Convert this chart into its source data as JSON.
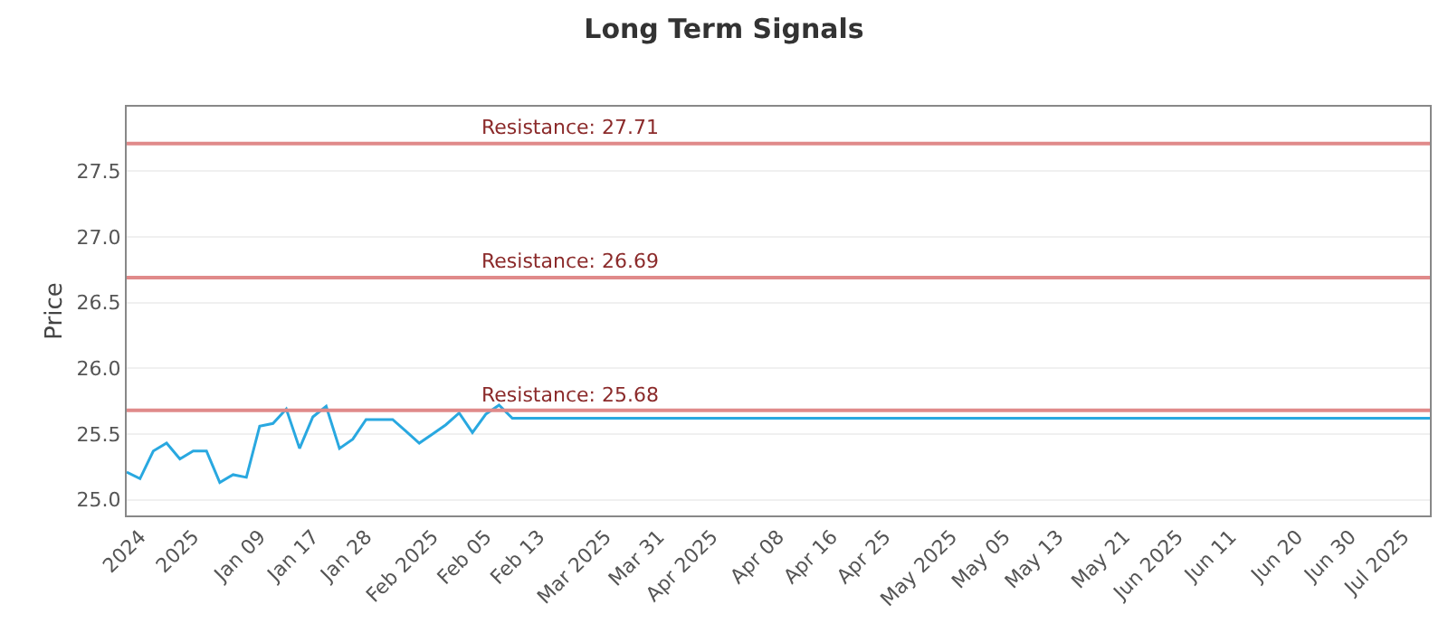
{
  "chart_data": {
    "type": "line",
    "title": "Long Term Signals",
    "ylabel": "Price",
    "categories": [
      null,
      "2024",
      null,
      null,
      null,
      "2025",
      null,
      null,
      null,
      null,
      "Jan 09",
      null,
      null,
      null,
      "Jan 17",
      null,
      null,
      null,
      "Jan 28",
      null,
      null,
      null,
      null,
      "Feb 2025",
      null,
      null,
      null,
      "Feb 05",
      null,
      null,
      null,
      "Feb 13",
      null,
      null,
      null,
      null,
      "Mar 2025",
      null,
      null,
      null,
      "Mar 31",
      null,
      null,
      null,
      "Apr 2025",
      null,
      null,
      null,
      null,
      "Apr 08",
      null,
      null,
      null,
      "Apr 16",
      null,
      null,
      null,
      "Apr 25",
      null,
      null,
      null,
      null,
      "May 2025",
      null,
      null,
      null,
      "May 05",
      null,
      null,
      null,
      "May 13",
      null,
      null,
      null,
      null,
      "May 21",
      null,
      null,
      null,
      "Jun 2025",
      null,
      null,
      null,
      "Jun 11",
      null,
      null,
      null,
      null,
      "Jun 20",
      null,
      null,
      null,
      "Jun 30",
      null,
      null,
      null,
      "Jul 2025",
      null,
      null
    ],
    "series": [
      {
        "color": "#29a8e0",
        "values": [
          25.21,
          25.16,
          25.37,
          25.43,
          25.31,
          25.37,
          25.37,
          25.13,
          25.19,
          25.17,
          25.56,
          25.58,
          25.69,
          25.39,
          25.63,
          25.71,
          25.39,
          25.46,
          25.61,
          25.61,
          25.61,
          25.52,
          25.43,
          25.5,
          25.57,
          25.66,
          25.51,
          25.65,
          25.72,
          25.62,
          25.62,
          25.62,
          25.62,
          25.62,
          25.62,
          25.62,
          25.62,
          25.62,
          25.62,
          25.62,
          25.62,
          25.62,
          25.62,
          25.62,
          25.62,
          25.62,
          25.62,
          25.62,
          25.62,
          25.62,
          25.62,
          25.62,
          25.62,
          25.62,
          25.62,
          25.62,
          25.62,
          25.62,
          25.62,
          25.62,
          25.62,
          25.62,
          25.62,
          25.62,
          25.62,
          25.62,
          25.62,
          25.62,
          25.62,
          25.62,
          25.62,
          25.62,
          25.62,
          25.62,
          25.62,
          25.62,
          25.62,
          25.62,
          25.62,
          25.62,
          25.62,
          25.62,
          25.62,
          25.62,
          25.62,
          25.62,
          25.62,
          25.62,
          25.62,
          25.62,
          25.62,
          25.62,
          25.62,
          25.62,
          25.62,
          25.62,
          25.62,
          25.62,
          25.62
        ]
      }
    ],
    "ylim": [
      24.88,
      27.99
    ],
    "yticks": [
      {
        "value": 25,
        "label": "25.0"
      },
      25.5,
      {
        "value": 26,
        "label": "26.0"
      },
      26.5,
      {
        "value": 27,
        "label": "27.0"
      },
      27.5
    ],
    "ref_lines": [
      {
        "axis": "y",
        "value": 25.68,
        "label": "Resistance: 25.68",
        "color": "#e08a8a"
      },
      {
        "axis": "y",
        "value": 26.69,
        "label": "Resistance: 26.69",
        "color": "#e08a8a"
      },
      {
        "axis": "y",
        "value": 27.71,
        "label": "Resistance: 27.71",
        "color": "#e08a8a"
      }
    ],
    "grid": "y",
    "legend": false,
    "marker": "none",
    "line_style": "solid"
  }
}
